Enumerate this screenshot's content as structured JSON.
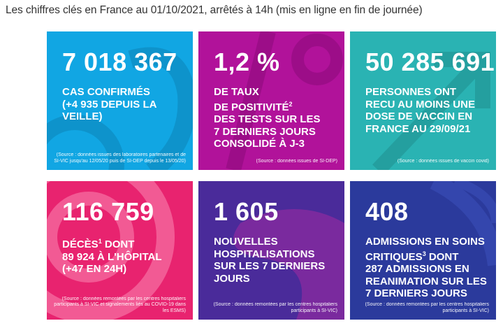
{
  "header": {
    "title": "Les chiffres clés en France au 01/10/2021, arrêtés à 14h (mis en ligne en fin de journée)"
  },
  "tiles": [
    {
      "value": "7 018 367",
      "desc_lines": [
        "CAS CONFIRMÉS",
        "(+4 935 DEPUIS LA",
        "VEILLE)"
      ],
      "source": "(Source : données issues des laboratoires partenaires et de SI-VIC jusqu'au 12/05/20 puis de SI-DEP depuis le 13/05/20)",
      "color": "#11a6e3"
    },
    {
      "value": "1,2 %",
      "desc_lines": [
        "DE TAUX",
        "DE POSITIVITÉ",
        "DES TESTS SUR LES",
        "7 DERNIERS JOURS",
        "CONSOLIDÉ À J-3"
      ],
      "desc_sup": "2",
      "source": "(Source : données issues de SI-DEP)",
      "color": "#b1129a"
    },
    {
      "value": "50 285 691",
      "desc_lines": [
        "PERSONNES ONT",
        "RECU AU MOINS UNE",
        "DOSE DE VACCIN EN",
        "FRANCE AU 29/09/21"
      ],
      "source": "(Source : données issues de vaccin covid)",
      "color": "#2ab3b3"
    },
    {
      "value": "116 759",
      "desc_lines": [
        "DÉCÈS",
        "DONT",
        "89 924 À L'HÔPITAL",
        "(+47 EN 24H)"
      ],
      "desc_sup": "1",
      "source": "(Source : données remontées par les centres hospitaliers participants à SI-VIC et signalements liés au COVID-19 dans les ESMS)",
      "color": "#e8236f"
    },
    {
      "value": "1 605",
      "desc_lines": [
        "NOUVELLES",
        "HOSPITALISATIONS",
        "SUR LES 7 DERNIERS",
        "JOURS"
      ],
      "source": "(Source : données remontées par les centres hospitaliers participants à SI-VIC)",
      "color": "#4a2b9a"
    },
    {
      "value": "408",
      "desc_lines": [
        "ADMISSIONS EN SOINS",
        "CRITIQUES",
        "DONT",
        "287 ADMISSIONS EN",
        "REANIMATION SUR LES",
        "7 DERNIERS JOURS"
      ],
      "desc_sup": "3",
      "source": "(Source : données remontées par les centres hospitaliers participants à SI-VIC)",
      "color": "#2b3a9c"
    }
  ]
}
